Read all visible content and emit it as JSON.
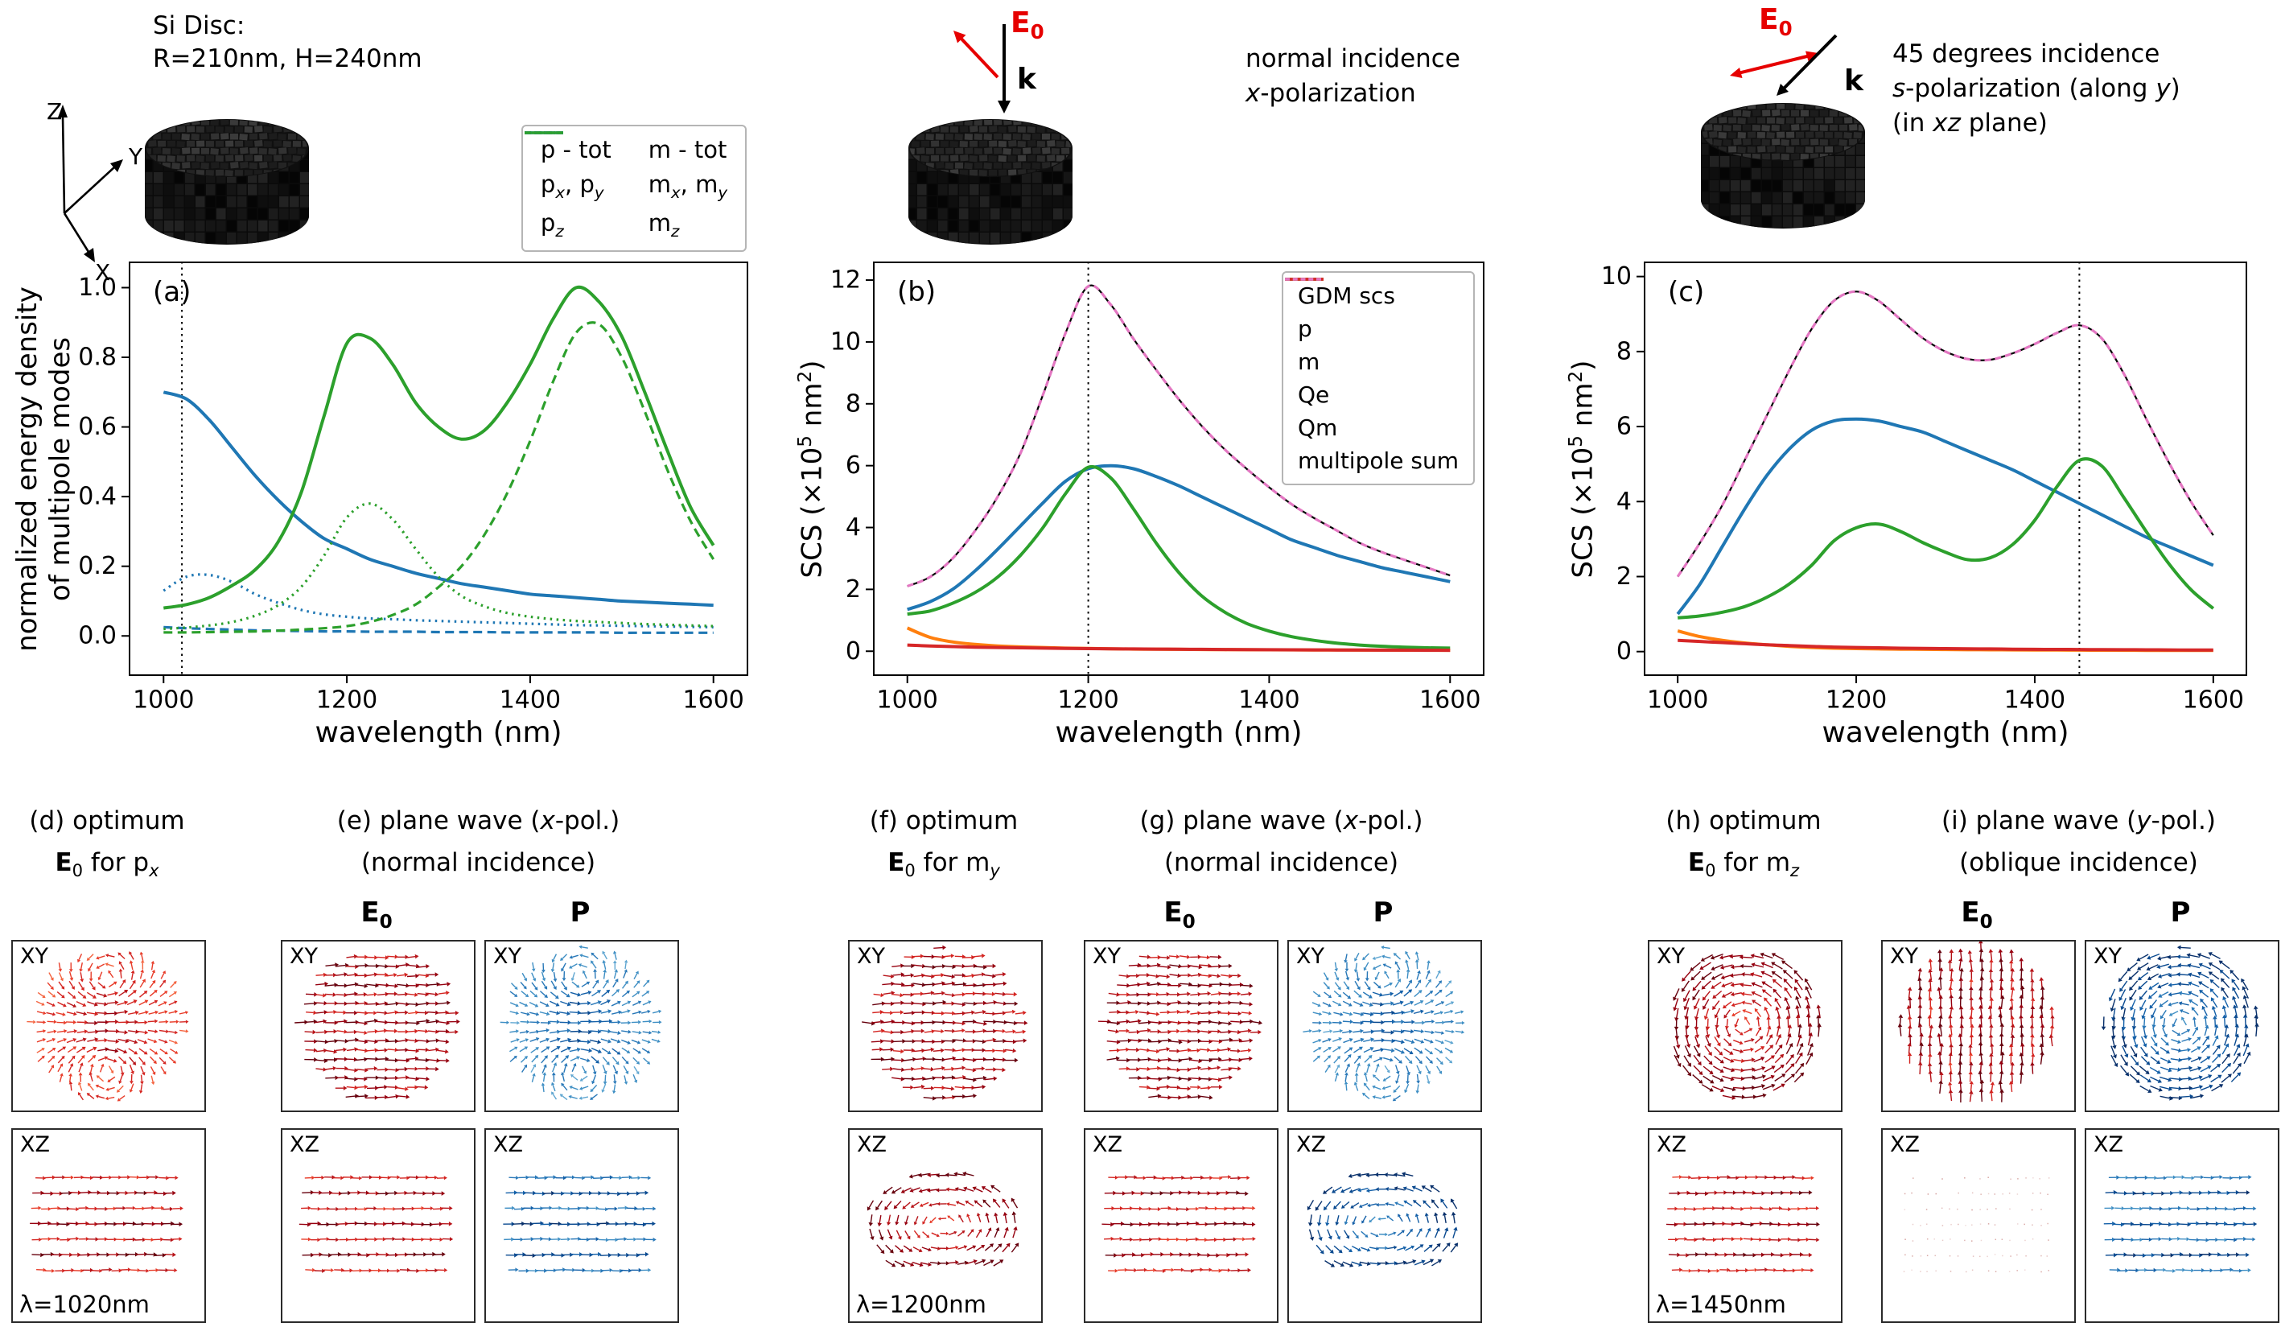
{
  "header": {
    "disc_spec_line1": "Si Disc:",
    "disc_spec_line2": "R=210nm, H=240nm",
    "axes_icon": {
      "x_label": "X",
      "y_label": "Y",
      "z_label": "Z"
    },
    "incidence_b": {
      "e0_html": "<b>E</b><sub>0</sub>",
      "k_label": "k",
      "caption_html": "normal incidence<br><i>x</i>-polarization"
    },
    "incidence_c": {
      "e0_html": "<b>E</b><sub>0</sub>",
      "k_label": "k",
      "caption_html": "45 degrees incidence<br><i>s</i>-polarization (along <i>y</i>)<br>(in <i>xz</i> plane)"
    },
    "colors": {
      "accent_red": "#e60000",
      "blue": "#1f77b4",
      "green": "#2ca02c",
      "orange": "#ff7f0e",
      "red": "#d62728",
      "magenta": "#e377c2"
    }
  },
  "chart_data": [
    {
      "id": "a",
      "type": "line",
      "panel_label": "(a)",
      "xlabel": "wavelength (nm)",
      "ylabel_html": "normalized energy density<br>of multipole modes",
      "xlim": [
        962,
        1638
      ],
      "ylim": [
        -0.115,
        1.075
      ],
      "xticks": [
        1000,
        1200,
        1400,
        1600
      ],
      "yticks": [
        0.0,
        0.2,
        0.4,
        0.6,
        0.8,
        1.0
      ],
      "ytick_decimals": true,
      "vline": 1020,
      "x": [
        1000,
        1025,
        1050,
        1075,
        1100,
        1125,
        1150,
        1175,
        1200,
        1225,
        1250,
        1275,
        1300,
        1325,
        1350,
        1375,
        1400,
        1425,
        1450,
        1475,
        1500,
        1525,
        1550,
        1575,
        1600
      ],
      "series": [
        {
          "name": "p - tot",
          "label_html": "p - tot",
          "color": "#1f77b4",
          "dash": "solid",
          "lw": 4,
          "values": [
            0.7,
            0.68,
            0.62,
            0.54,
            0.46,
            0.39,
            0.33,
            0.28,
            0.25,
            0.22,
            0.2,
            0.18,
            0.165,
            0.15,
            0.14,
            0.13,
            0.12,
            0.115,
            0.11,
            0.105,
            0.1,
            0.097,
            0.094,
            0.091,
            0.088
          ]
        },
        {
          "name": "px, py",
          "label_html": "p<sub><i>x</i></sub>, p<sub><i>y</i></sub>",
          "color": "#1f77b4",
          "dash": "dotted",
          "lw": 3.2,
          "values": [
            0.13,
            0.17,
            0.175,
            0.155,
            0.12,
            0.095,
            0.075,
            0.062,
            0.055,
            0.05,
            0.048,
            0.045,
            0.043,
            0.041,
            0.039,
            0.037,
            0.035,
            0.033,
            0.031,
            0.03,
            0.029,
            0.028,
            0.027,
            0.026,
            0.025
          ]
        },
        {
          "name": "pz",
          "label_html": "p<sub><i>z</i></sub>",
          "color": "#1f77b4",
          "dash": "dashed",
          "lw": 3.2,
          "values": [
            0.025,
            0.022,
            0.02,
            0.018,
            0.016,
            0.015,
            0.014,
            0.013,
            0.013,
            0.012,
            0.012,
            0.012,
            0.011,
            0.011,
            0.011,
            0.01,
            0.01,
            0.01,
            0.01,
            0.01,
            0.009,
            0.009,
            0.009,
            0.009,
            0.009
          ]
        },
        {
          "name": "m - tot",
          "label_html": "m - tot",
          "color": "#2ca02c",
          "dash": "solid",
          "lw": 4,
          "values": [
            0.08,
            0.09,
            0.11,
            0.145,
            0.19,
            0.27,
            0.41,
            0.63,
            0.84,
            0.855,
            0.78,
            0.67,
            0.6,
            0.565,
            0.59,
            0.67,
            0.78,
            0.91,
            1.0,
            0.96,
            0.86,
            0.7,
            0.53,
            0.37,
            0.26
          ]
        },
        {
          "name": "mx, my",
          "label_html": "m<sub><i>x</i></sub>, m<sub><i>y</i></sub>",
          "color": "#2ca02c",
          "dash": "dotted",
          "lw": 3.2,
          "values": [
            0.02,
            0.024,
            0.03,
            0.04,
            0.058,
            0.088,
            0.14,
            0.23,
            0.34,
            0.38,
            0.335,
            0.25,
            0.17,
            0.115,
            0.085,
            0.066,
            0.055,
            0.048,
            0.043,
            0.04,
            0.037,
            0.034,
            0.032,
            0.03,
            0.028
          ]
        },
        {
          "name": "mz",
          "label_html": "m<sub><i>z</i></sub>",
          "color": "#2ca02c",
          "dash": "dashed",
          "lw": 3.2,
          "values": [
            0.01,
            0.01,
            0.011,
            0.012,
            0.013,
            0.015,
            0.018,
            0.022,
            0.028,
            0.04,
            0.06,
            0.09,
            0.14,
            0.2,
            0.29,
            0.41,
            0.56,
            0.73,
            0.87,
            0.895,
            0.8,
            0.645,
            0.475,
            0.33,
            0.22
          ]
        }
      ],
      "legend": {
        "mode": "above",
        "ncol": 2,
        "order": [
          0,
          3,
          1,
          4,
          2,
          5
        ]
      }
    },
    {
      "id": "b",
      "type": "line",
      "panel_label": "(b)",
      "xlabel": "wavelength (nm)",
      "ylabel_html": "SCS (&times;10<sup>5</sup> nm<sup>2</sup>)",
      "xlim": [
        962,
        1638
      ],
      "ylim": [
        -0.8,
        12.6
      ],
      "xticks": [
        1000,
        1200,
        1400,
        1600
      ],
      "yticks": [
        0,
        2,
        4,
        6,
        8,
        10,
        12
      ],
      "ytick_decimals": false,
      "vline": 1200,
      "x": [
        1000,
        1025,
        1050,
        1075,
        1100,
        1125,
        1150,
        1175,
        1200,
        1225,
        1250,
        1275,
        1300,
        1325,
        1350,
        1375,
        1400,
        1425,
        1450,
        1475,
        1500,
        1525,
        1550,
        1575,
        1600
      ],
      "series": [
        {
          "name": "GDM scs",
          "label_html": "GDM scs",
          "color": "#000000",
          "dash": "solid",
          "lw": 2.2,
          "values": [
            2.1,
            2.4,
            3.0,
            3.9,
            5.0,
            6.4,
            8.3,
            10.3,
            11.8,
            11.2,
            10.1,
            9.1,
            8.15,
            7.3,
            6.55,
            5.9,
            5.3,
            4.75,
            4.3,
            3.9,
            3.5,
            3.2,
            2.95,
            2.7,
            2.45
          ]
        },
        {
          "name": "p",
          "label_html": "p",
          "color": "#1f77b4",
          "dash": "solid",
          "lw": 4,
          "values": [
            1.35,
            1.6,
            2.0,
            2.6,
            3.3,
            4.05,
            4.8,
            5.5,
            5.9,
            6.0,
            5.9,
            5.65,
            5.35,
            5.0,
            4.65,
            4.3,
            3.95,
            3.6,
            3.35,
            3.1,
            2.9,
            2.7,
            2.55,
            2.4,
            2.25
          ]
        },
        {
          "name": "m",
          "label_html": "m",
          "color": "#2ca02c",
          "dash": "solid",
          "lw": 4,
          "values": [
            1.2,
            1.3,
            1.55,
            1.9,
            2.4,
            3.1,
            4.0,
            5.1,
            5.95,
            5.6,
            4.6,
            3.5,
            2.55,
            1.8,
            1.28,
            0.9,
            0.65,
            0.47,
            0.35,
            0.26,
            0.2,
            0.16,
            0.13,
            0.11,
            0.1
          ]
        },
        {
          "name": "Qe",
          "label_html": "Qe",
          "color": "#ff7f0e",
          "dash": "solid",
          "lw": 4,
          "values": [
            0.75,
            0.45,
            0.3,
            0.22,
            0.17,
            0.14,
            0.12,
            0.1,
            0.09,
            0.08,
            0.07,
            0.065,
            0.06,
            0.055,
            0.05,
            0.048,
            0.045,
            0.042,
            0.04,
            0.038,
            0.036,
            0.034,
            0.032,
            0.03,
            0.03
          ]
        },
        {
          "name": "Qm",
          "label_html": "Qm",
          "color": "#d62728",
          "dash": "solid",
          "lw": 4,
          "values": [
            0.2,
            0.17,
            0.15,
            0.13,
            0.12,
            0.11,
            0.1,
            0.09,
            0.085,
            0.08,
            0.075,
            0.07,
            0.065,
            0.06,
            0.055,
            0.05,
            0.048,
            0.045,
            0.042,
            0.04,
            0.038,
            0.036,
            0.034,
            0.032,
            0.03
          ]
        },
        {
          "name": "multipole sum",
          "label_html": "multipole sum",
          "color": "#e377c2",
          "dash": "dashdense",
          "lw": 3.2,
          "values": [
            2.1,
            2.4,
            3.0,
            3.9,
            5.0,
            6.4,
            8.3,
            10.3,
            11.8,
            11.2,
            10.1,
            9.1,
            8.15,
            7.3,
            6.55,
            5.9,
            5.3,
            4.75,
            4.3,
            3.9,
            3.5,
            3.2,
            2.95,
            2.7,
            2.45
          ]
        }
      ],
      "legend": {
        "mode": "inside",
        "ncol": 1
      }
    },
    {
      "id": "c",
      "type": "line",
      "panel_label": "(c)",
      "xlabel": "wavelength (nm)",
      "ylabel_html": "SCS (&times;10<sup>5</sup> nm<sup>2</sup>)",
      "xlim": [
        962,
        1638
      ],
      "ylim": [
        -0.65,
        10.4
      ],
      "xticks": [
        1000,
        1200,
        1400,
        1600
      ],
      "yticks": [
        0,
        2,
        4,
        6,
        8,
        10
      ],
      "ytick_decimals": false,
      "vline": 1450,
      "x": [
        1000,
        1025,
        1050,
        1075,
        1100,
        1125,
        1150,
        1175,
        1200,
        1225,
        1250,
        1275,
        1300,
        1325,
        1350,
        1375,
        1400,
        1425,
        1450,
        1475,
        1500,
        1525,
        1550,
        1575,
        1600
      ],
      "series": [
        {
          "name": "GDM scs",
          "label_html": "GDM scs",
          "color": "#000000",
          "dash": "solid",
          "lw": 2.2,
          "values": [
            2.0,
            2.9,
            3.9,
            5.1,
            6.3,
            7.5,
            8.6,
            9.35,
            9.6,
            9.35,
            8.85,
            8.35,
            8.0,
            7.8,
            7.78,
            7.95,
            8.2,
            8.5,
            8.7,
            8.35,
            7.4,
            6.2,
            5.05,
            4.0,
            3.1
          ]
        },
        {
          "name": "p",
          "label_html": "p",
          "color": "#1f77b4",
          "dash": "solid",
          "lw": 4,
          "values": [
            1.0,
            1.8,
            2.8,
            3.8,
            4.7,
            5.4,
            5.9,
            6.15,
            6.2,
            6.15,
            6.0,
            5.85,
            5.6,
            5.35,
            5.1,
            4.85,
            4.55,
            4.25,
            3.95,
            3.65,
            3.35,
            3.05,
            2.8,
            2.55,
            2.3
          ]
        },
        {
          "name": "m",
          "label_html": "m",
          "color": "#2ca02c",
          "dash": "solid",
          "lw": 4,
          "values": [
            0.9,
            0.95,
            1.05,
            1.2,
            1.45,
            1.8,
            2.3,
            2.95,
            3.3,
            3.4,
            3.2,
            2.9,
            2.65,
            2.45,
            2.5,
            2.85,
            3.5,
            4.4,
            5.1,
            4.95,
            4.1,
            3.2,
            2.35,
            1.65,
            1.15
          ]
        },
        {
          "name": "Qe",
          "label_html": "Qe",
          "color": "#ff7f0e",
          "dash": "solid",
          "lw": 4,
          "values": [
            0.55,
            0.4,
            0.3,
            0.23,
            0.18,
            0.14,
            0.11,
            0.09,
            0.08,
            0.07,
            0.065,
            0.06,
            0.055,
            0.05,
            0.048,
            0.045,
            0.042,
            0.04,
            0.038,
            0.036,
            0.034,
            0.032,
            0.03,
            0.03,
            0.03
          ]
        },
        {
          "name": "Qm",
          "label_html": "Qm",
          "color": "#d62728",
          "dash": "solid",
          "lw": 4,
          "values": [
            0.3,
            0.27,
            0.24,
            0.21,
            0.18,
            0.16,
            0.14,
            0.12,
            0.11,
            0.1,
            0.09,
            0.085,
            0.08,
            0.075,
            0.07,
            0.065,
            0.06,
            0.058,
            0.055,
            0.052,
            0.05,
            0.048,
            0.045,
            0.042,
            0.04
          ]
        },
        {
          "name": "multipole sum",
          "label_html": "multipole sum",
          "color": "#e377c2",
          "dash": "dashdense",
          "lw": 3.2,
          "values": [
            2.0,
            2.9,
            3.9,
            5.1,
            6.3,
            7.5,
            8.6,
            9.35,
            9.6,
            9.35,
            8.85,
            8.35,
            8.0,
            7.8,
            7.78,
            7.95,
            8.2,
            8.5,
            8.7,
            8.35,
            7.4,
            6.2,
            5.05,
            4.0,
            3.1
          ]
        }
      ]
    }
  ],
  "field_section": {
    "xy_label": "XY",
    "xz_label": "XZ",
    "groups": [
      {
        "id": "d",
        "title_html": "(d) optimum",
        "subtitle_html": "<b>E</b><sub>0</sub> for p<sub><i>x</i></sub>",
        "columns": [
          {
            "header_html": "",
            "xy_pattern": "two-lobes",
            "xz_pattern": "layers-x",
            "scheme": "red",
            "lambda": "λ=1020nm"
          }
        ]
      },
      {
        "id": "e",
        "title_html": "(e) plane wave (<i>x</i>-pol.)",
        "subtitle_html": "(normal incidence)",
        "columns": [
          {
            "header_html": "<b>E</b><sub>0</sub>",
            "xy_pattern": "uniform-x",
            "xz_pattern": "layers-x",
            "scheme": "red"
          },
          {
            "header_html": "<b>P</b>",
            "xy_pattern": "two-lobes",
            "xz_pattern": "layers-x",
            "scheme": "blue"
          }
        ]
      },
      {
        "id": "f",
        "title_html": "(f) optimum",
        "subtitle_html": "<b>E</b><sub>0</sub> for m<sub><i>y</i></sub>",
        "columns": [
          {
            "header_html": "",
            "xy_pattern": "uniform-x",
            "xz_pattern": "vortex-xz",
            "scheme": "red",
            "lambda": "λ=1200nm"
          }
        ]
      },
      {
        "id": "g",
        "title_html": "(g) plane wave (<i>x</i>-pol.)",
        "subtitle_html": "(normal incidence)",
        "columns": [
          {
            "header_html": "<b>E</b><sub>0</sub>",
            "xy_pattern": "uniform-x",
            "xz_pattern": "layers-x",
            "scheme": "red"
          },
          {
            "header_html": "<b>P</b>",
            "xy_pattern": "two-lobes",
            "xz_pattern": "vortex-xz",
            "scheme": "blue"
          }
        ]
      },
      {
        "id": "h",
        "title_html": "(h) optimum",
        "subtitle_html": "<b>E</b><sub>0</sub> for m<sub><i>z</i></sub>",
        "columns": [
          {
            "header_html": "",
            "xy_pattern": "vortex",
            "xz_pattern": "layers-x",
            "scheme": "red",
            "lambda": "λ=1450nm"
          }
        ]
      },
      {
        "id": "i",
        "title_html": "(i) plane wave (<i>y</i>-pol.)",
        "subtitle_html": "(oblique incidence)",
        "columns": [
          {
            "header_html": "<b>E</b><sub>0</sub>",
            "xy_pattern": "uniform-y",
            "xz_pattern": "dots",
            "scheme": "red"
          },
          {
            "header_html": "<b>P</b>",
            "xy_pattern": "vortex",
            "xz_pattern": "layers-x",
            "scheme": "blue"
          }
        ]
      }
    ]
  }
}
